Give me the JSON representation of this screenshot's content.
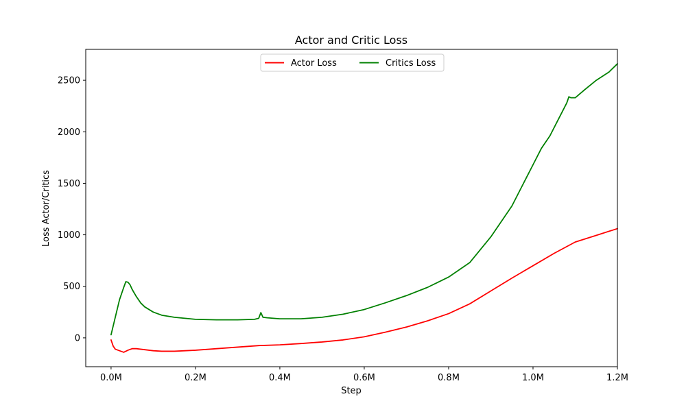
{
  "chart_data": {
    "type": "line",
    "title": "Actor and Critic Loss",
    "xlabel": "Step",
    "ylabel": "Loss Actor/Critics",
    "xlim": [
      -0.06,
      1.2
    ],
    "ylim": [
      -280,
      2800
    ],
    "x_unit_suffix": "M",
    "x_ticks": [
      0.0,
      0.2,
      0.4,
      0.6,
      0.8,
      1.0,
      1.2
    ],
    "x_tick_labels": [
      "0.0M",
      "0.2M",
      "0.4M",
      "0.6M",
      "0.8M",
      "1.0M",
      "1.2M"
    ],
    "y_ticks": [
      0,
      500,
      1000,
      1500,
      2000,
      2500
    ],
    "y_tick_labels": [
      "0",
      "500",
      "1000",
      "1500",
      "2000",
      "2500"
    ],
    "grid": false,
    "legend_position": "top-center",
    "series": [
      {
        "name": "Actor Loss",
        "color": "#ff0000",
        "x": [
          0.0,
          0.005,
          0.01,
          0.02,
          0.03,
          0.04,
          0.05,
          0.06,
          0.08,
          0.1,
          0.12,
          0.15,
          0.2,
          0.25,
          0.3,
          0.35,
          0.4,
          0.45,
          0.5,
          0.55,
          0.6,
          0.65,
          0.7,
          0.75,
          0.8,
          0.85,
          0.9,
          0.95,
          1.0,
          1.05,
          1.1,
          1.15,
          1.2
        ],
        "y": [
          -20,
          -80,
          -110,
          -125,
          -140,
          -120,
          -105,
          -105,
          -115,
          -125,
          -130,
          -130,
          -120,
          -105,
          -90,
          -75,
          -68,
          -55,
          -40,
          -20,
          10,
          55,
          105,
          165,
          235,
          330,
          455,
          580,
          700,
          820,
          930,
          995,
          1060
        ]
      },
      {
        "name": "Critics Loss",
        "color": "#008000",
        "x": [
          0.0,
          0.01,
          0.02,
          0.03,
          0.035,
          0.04,
          0.045,
          0.05,
          0.06,
          0.07,
          0.08,
          0.1,
          0.12,
          0.15,
          0.2,
          0.25,
          0.3,
          0.34,
          0.35,
          0.355,
          0.36,
          0.37,
          0.4,
          0.45,
          0.5,
          0.55,
          0.6,
          0.65,
          0.7,
          0.75,
          0.8,
          0.85,
          0.9,
          0.95,
          1.0,
          1.02,
          1.04,
          1.06,
          1.07,
          1.08,
          1.085,
          1.09,
          1.1,
          1.12,
          1.15,
          1.18,
          1.2
        ],
        "y": [
          30,
          200,
          370,
          490,
          545,
          540,
          515,
          470,
          400,
          340,
          300,
          250,
          220,
          200,
          180,
          175,
          175,
          180,
          190,
          245,
          200,
          195,
          185,
          185,
          200,
          230,
          275,
          340,
          410,
          490,
          590,
          730,
          980,
          1280,
          1680,
          1840,
          1960,
          2120,
          2200,
          2280,
          2340,
          2330,
          2330,
          2400,
          2500,
          2580,
          2660
        ]
      }
    ]
  }
}
